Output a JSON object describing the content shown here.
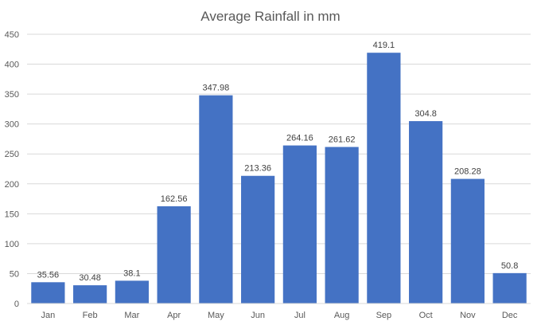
{
  "chart_data": {
    "type": "bar",
    "title": "Average Rainfall in mm",
    "xlabel": "",
    "ylabel": "",
    "categories": [
      "Jan",
      "Feb",
      "Mar",
      "Apr",
      "May",
      "Jun",
      "Jul",
      "Aug",
      "Sep",
      "Oct",
      "Nov",
      "Dec"
    ],
    "values": [
      35.56,
      30.48,
      38.1,
      162.56,
      347.98,
      213.36,
      264.16,
      261.62,
      419.1,
      304.8,
      208.28,
      50.8
    ],
    "value_labels": [
      "35.56",
      "30.48",
      "38.1",
      "162.56",
      "347.98",
      "213.36",
      "264.16",
      "261.62",
      "419.1",
      "304.8",
      "208.28",
      "50.8"
    ],
    "ylim": [
      0,
      450
    ],
    "yticks": [
      0,
      50,
      100,
      150,
      200,
      250,
      300,
      350,
      400,
      450
    ],
    "grid": true,
    "legend": "none",
    "colors": {
      "bar": "#4472c4",
      "grid": "#d9d9d9",
      "axis_text": "#595959",
      "label_text": "#404040",
      "title_text": "#595959"
    }
  }
}
